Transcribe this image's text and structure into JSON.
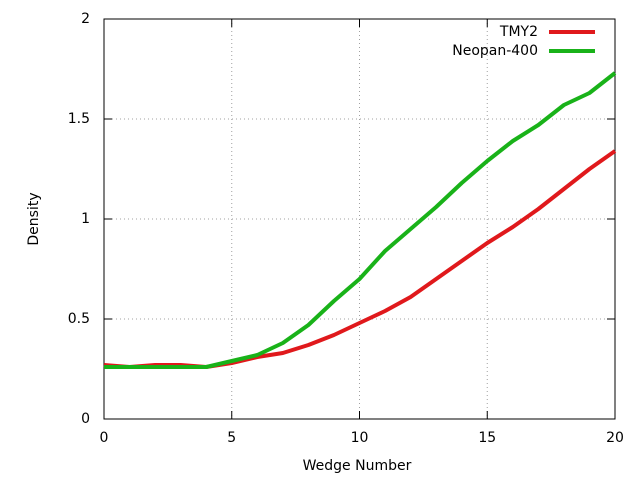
{
  "chart_data": {
    "type": "line",
    "xlabel": "Wedge Number",
    "ylabel": "Density",
    "x": [
      0,
      1,
      2,
      3,
      4,
      5,
      6,
      7,
      8,
      9,
      10,
      11,
      12,
      13,
      14,
      15,
      16,
      17,
      18,
      19,
      20
    ],
    "series": [
      {
        "name": "TMY2",
        "color": "#e0191c",
        "values": [
          0.27,
          0.26,
          0.27,
          0.27,
          0.26,
          0.28,
          0.31,
          0.33,
          0.37,
          0.42,
          0.48,
          0.54,
          0.61,
          0.7,
          0.79,
          0.88,
          0.96,
          1.05,
          1.15,
          1.25,
          1.34
        ]
      },
      {
        "name": "Neopan-400",
        "color": "#19b219",
        "values": [
          0.26,
          0.26,
          0.26,
          0.26,
          0.26,
          0.29,
          0.32,
          0.38,
          0.47,
          0.59,
          0.7,
          0.84,
          0.95,
          1.06,
          1.18,
          1.29,
          1.39,
          1.47,
          1.57,
          1.63,
          1.73
        ]
      }
    ],
    "xlim": [
      0,
      20
    ],
    "xticks": [
      0,
      5,
      10,
      15,
      20
    ],
    "ylim": [
      0,
      2
    ],
    "yticks": [
      0,
      0.5,
      1,
      1.5,
      2
    ],
    "grid": true,
    "legend": "top-right"
  }
}
